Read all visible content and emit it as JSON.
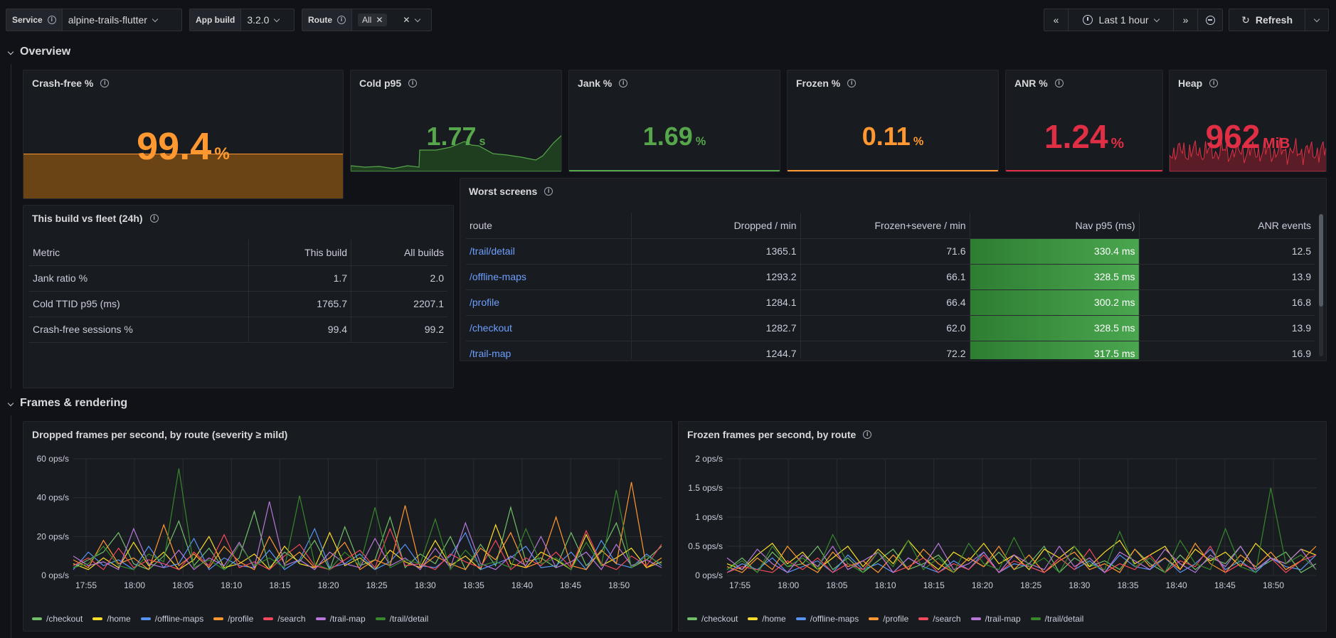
{
  "variables": {
    "service": {
      "label": "Service",
      "value": "alpine-trails-flutter"
    },
    "app_build": {
      "label": "App build",
      "value": "3.2.0"
    },
    "route": {
      "label": "Route",
      "value": "All"
    }
  },
  "timepicker": {
    "range": "Last 1 hour",
    "refresh": "Refresh"
  },
  "rows": {
    "overview": "Overview",
    "frames": "Frames & rendering"
  },
  "stats": {
    "crash_free": {
      "title": "Crash-free %",
      "value": "99.4",
      "unit": "%",
      "color": "#ff9830"
    },
    "cold_p95": {
      "title": "Cold p95",
      "value": "1.77",
      "unit": "s",
      "color": "#56a64b"
    },
    "jank": {
      "title": "Jank %",
      "value": "1.69",
      "unit": "%",
      "color": "#56a64b"
    },
    "frozen": {
      "title": "Frozen %",
      "value": "0.11",
      "unit": "%",
      "color": "#ff9830"
    },
    "anr": {
      "title": "ANR %",
      "value": "1.24",
      "unit": "%",
      "color": "#e02f44"
    },
    "heap": {
      "title": "Heap",
      "value": "962",
      "unit": "MiB",
      "color": "#e02f44"
    }
  },
  "build_vs_fleet": {
    "title": "This build vs fleet (24h)",
    "columns": [
      "Metric",
      "This build",
      "All builds"
    ],
    "rows": [
      [
        "Jank ratio %",
        "1.7",
        "2.0"
      ],
      [
        "Cold TTID p95 (ms)",
        "1765.7",
        "2207.1"
      ],
      [
        "Crash-free sessions %",
        "99.4",
        "99.2"
      ]
    ]
  },
  "worst_screens": {
    "title": "Worst screens",
    "columns": [
      "route",
      "Dropped / min",
      "Frozen+severe / min",
      "Nav p95 (ms)",
      "ANR events"
    ],
    "rows": [
      [
        "/trail/detail",
        "1365.1",
        "71.6",
        "330.4 ms",
        "12.5"
      ],
      [
        "/offline-maps",
        "1293.2",
        "66.1",
        "328.5 ms",
        "13.9"
      ],
      [
        "/profile",
        "1284.1",
        "66.4",
        "300.2 ms",
        "16.8"
      ],
      [
        "/checkout",
        "1282.7",
        "62.0",
        "328.5 ms",
        "13.9"
      ],
      [
        "/trail-map",
        "1244.7",
        "72.2",
        "317.5 ms",
        "16.9"
      ]
    ]
  },
  "chart_data": [
    {
      "type": "line",
      "title": "Dropped frames per second, by route (severity ≥ mild)",
      "unit": "ops/s",
      "ylim": [
        0,
        60
      ],
      "yticks": [
        "60 ops/s",
        "40 ops/s",
        "20 ops/s",
        "0 ops/s"
      ],
      "xticks": [
        "17:55",
        "18:00",
        "18:05",
        "18:10",
        "18:15",
        "18:20",
        "18:25",
        "18:30",
        "18:35",
        "18:40",
        "18:45",
        "18:50"
      ],
      "series": [
        {
          "name": "/checkout",
          "color": "#73bf69",
          "values": [
            4,
            8,
            12,
            22,
            6,
            3,
            10,
            28,
            5,
            14,
            3,
            9,
            33,
            4,
            12,
            7,
            18,
            3,
            25,
            5,
            8,
            30,
            4,
            11,
            6,
            20,
            3,
            16,
            5,
            35,
            7,
            9,
            4,
            22,
            5,
            12,
            27,
            4,
            8,
            15
          ]
        },
        {
          "name": "/home",
          "color": "#fade2a",
          "values": [
            6,
            3,
            9,
            4,
            17,
            5,
            12,
            3,
            8,
            20,
            4,
            6,
            11,
            3,
            15,
            6,
            4,
            22,
            5,
            9,
            3,
            13,
            7,
            4,
            18,
            5,
            10,
            3,
            26,
            6,
            4,
            12,
            8,
            3,
            21,
            5,
            9,
            14,
            4,
            7
          ]
        },
        {
          "name": "/offline-maps",
          "color": "#5794f2",
          "values": [
            3,
            12,
            5,
            8,
            3,
            15,
            4,
            6,
            19,
            3,
            9,
            5,
            4,
            13,
            3,
            8,
            24,
            4,
            6,
            11,
            3,
            7,
            16,
            5,
            4,
            10,
            22,
            3,
            6,
            9,
            15,
            4,
            5,
            12,
            3,
            18,
            6,
            4,
            11,
            5
          ]
        },
        {
          "name": "/profile",
          "color": "#ff9830",
          "values": [
            8,
            4,
            18,
            6,
            9,
            3,
            26,
            5,
            11,
            4,
            15,
            7,
            3,
            20,
            6,
            12,
            4,
            9,
            17,
            3,
            8,
            5,
            36,
            4,
            10,
            6,
            3,
            14,
            8,
            22,
            4,
            7,
            30,
            5,
            3,
            13,
            6,
            48,
            4,
            9
          ]
        },
        {
          "name": "/search",
          "color": "#f2495c",
          "values": [
            5,
            9,
            3,
            14,
            4,
            8,
            6,
            3,
            12,
            5,
            21,
            4,
            7,
            3,
            10,
            16,
            5,
            3,
            8,
            13,
            4,
            24,
            5,
            6,
            3,
            11,
            7,
            4,
            18,
            3,
            9,
            5,
            12,
            4,
            23,
            6,
            3,
            10,
            5,
            16
          ]
        },
        {
          "name": "/trail-map",
          "color": "#b877d9",
          "values": [
            10,
            5,
            7,
            3,
            24,
            6,
            4,
            13,
            3,
            9,
            5,
            17,
            4,
            38,
            5,
            8,
            3,
            12,
            6,
            4,
            19,
            5,
            9,
            3,
            14,
            4,
            27,
            6,
            3,
            10,
            5,
            20,
            4,
            7,
            12,
            3,
            16,
            5,
            8,
            4
          ]
        },
        {
          "name": "/trail/detail",
          "color": "#37872d",
          "values": [
            4,
            6,
            15,
            5,
            3,
            11,
            7,
            55,
            4,
            8,
            3,
            16,
            5,
            9,
            4,
            41,
            6,
            3,
            12,
            5,
            35,
            4,
            8,
            6,
            29,
            3,
            13,
            5,
            7,
            4,
            24,
            6,
            9,
            3,
            17,
            5,
            44,
            4,
            10,
            6
          ]
        }
      ]
    },
    {
      "type": "line",
      "title": "Frozen frames per second, by route",
      "unit": "ops/s",
      "ylim": [
        0,
        2
      ],
      "yticks": [
        "2 ops/s",
        "1.5 ops/s",
        "1 ops/s",
        "0.5 ops/s",
        "0 ops/s"
      ],
      "xticks": [
        "17:55",
        "18:00",
        "18:05",
        "18:10",
        "18:15",
        "18:20",
        "18:25",
        "18:30",
        "18:35",
        "18:40",
        "18:45",
        "18:50"
      ],
      "series": [
        {
          "name": "/checkout",
          "color": "#73bf69",
          "values": [
            0.1,
            0.3,
            0.05,
            0.4,
            0.15,
            0.2,
            0.5,
            0.1,
            0.3,
            0.05,
            0.25,
            0.45,
            0.1,
            0.2,
            0.35,
            0.05,
            0.3,
            0.15,
            0.4,
            0.1,
            0.2,
            0.5,
            0.05,
            0.3,
            0.15,
            0.25,
            0.1,
            0.45,
            0.2,
            0.05,
            0.35,
            0.1,
            0.3,
            0.2,
            0.5,
            0.1,
            0.25,
            0.4,
            0.05,
            0.2
          ]
        },
        {
          "name": "/home",
          "color": "#fade2a",
          "values": [
            0.2,
            0.1,
            0.35,
            0.55,
            0.2,
            0.4,
            0.1,
            0.3,
            0.5,
            0.15,
            0.45,
            0.2,
            0.6,
            0.3,
            0.1,
            0.4,
            0.25,
            0.55,
            0.2,
            0.35,
            0.1,
            0.45,
            0.3,
            0.5,
            0.15,
            0.4,
            0.6,
            0.2,
            0.35,
            0.5,
            0.1,
            0.45,
            0.25,
            0.4,
            0.15,
            0.55,
            0.3,
            0.2,
            0.45,
            0.35
          ]
        },
        {
          "name": "/offline-maps",
          "color": "#5794f2",
          "values": [
            0.05,
            0.2,
            0.1,
            0.3,
            0.05,
            0.15,
            0.25,
            0.05,
            0.35,
            0.1,
            0.2,
            0.05,
            0.3,
            0.15,
            0.05,
            0.25,
            0.1,
            0.4,
            0.05,
            0.2,
            0.15,
            0.05,
            0.3,
            0.1,
            0.25,
            0.05,
            0.35,
            0.15,
            0.1,
            0.3,
            0.05,
            0.2,
            0.45,
            0.1,
            0.25,
            0.05,
            0.3,
            0.15,
            0.1,
            0.35
          ]
        },
        {
          "name": "/profile",
          "color": "#ff9830",
          "values": [
            0.15,
            0.05,
            0.3,
            0.1,
            0.5,
            0.2,
            0.05,
            0.4,
            0.15,
            0.25,
            0.05,
            0.35,
            0.1,
            0.45,
            0.2,
            0.05,
            0.3,
            0.15,
            0.5,
            0.1,
            0.35,
            0.05,
            0.25,
            0.4,
            0.1,
            0.2,
            0.05,
            0.45,
            0.15,
            0.3,
            0.1,
            0.55,
            0.2,
            0.05,
            0.35,
            0.15,
            0.4,
            0.1,
            0.25,
            0.5
          ]
        },
        {
          "name": "/search",
          "color": "#f2495c",
          "values": [
            0.05,
            0.15,
            0.1,
            0.05,
            0.25,
            0.1,
            0.3,
            0.05,
            0.2,
            0.1,
            0.4,
            0.05,
            0.15,
            0.3,
            0.05,
            0.2,
            0.1,
            0.35,
            0.05,
            0.25,
            0.15,
            0.05,
            0.3,
            0.1,
            0.45,
            0.05,
            0.2,
            0.1,
            0.35,
            0.05,
            0.25,
            0.15,
            0.5,
            0.05,
            0.2,
            0.1,
            0.3,
            0.05,
            0.25,
            0.35
          ]
        },
        {
          "name": "/trail-map",
          "color": "#b877d9",
          "values": [
            0.3,
            0.1,
            0.45,
            0.2,
            0.05,
            0.35,
            0.15,
            0.5,
            0.1,
            0.25,
            0.4,
            0.05,
            0.3,
            0.15,
            0.55,
            0.1,
            0.2,
            0.4,
            0.05,
            0.35,
            0.2,
            0.1,
            0.5,
            0.15,
            0.3,
            0.05,
            0.4,
            0.25,
            0.1,
            0.45,
            0.2,
            0.05,
            0.35,
            0.15,
            0.5,
            0.1,
            0.3,
            0.2,
            0.45,
            0.1
          ]
        },
        {
          "name": "/trail/detail",
          "color": "#37872d",
          "values": [
            0.1,
            0.25,
            0.05,
            0.5,
            0.15,
            0.3,
            0.1,
            0.7,
            0.2,
            0.05,
            0.4,
            0.15,
            0.6,
            0.1,
            0.3,
            0.05,
            0.55,
            0.2,
            0.1,
            0.65,
            0.15,
            0.3,
            0.05,
            0.5,
            0.2,
            0.1,
            0.75,
            0.15,
            0.3,
            0.05,
            0.6,
            0.2,
            0.1,
            0.8,
            0.15,
            0.05,
            1.5,
            0.2,
            0.35,
            0.1
          ]
        }
      ]
    }
  ]
}
